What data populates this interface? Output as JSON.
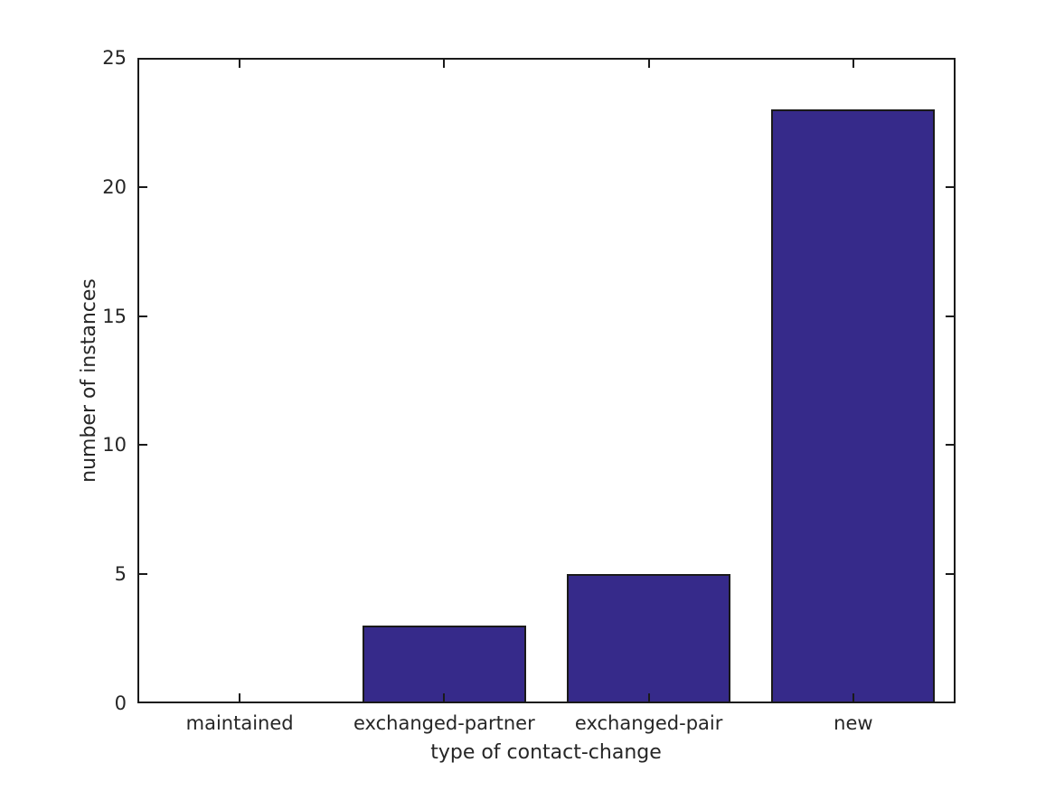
{
  "chart_data": {
    "type": "bar",
    "categories": [
      "maintained",
      "exchanged-partner",
      "exchanged-pair",
      "new"
    ],
    "values": [
      0,
      3,
      5,
      23
    ],
    "title": "",
    "xlabel": "type of contact-change",
    "ylabel": "number of instances",
    "ylim": [
      0,
      25
    ],
    "yticks": [
      0,
      5,
      10,
      15,
      20,
      25
    ],
    "bar_width_fraction": 0.8,
    "bar_color": "#362a8a",
    "bar_edge_color": "#1a1a1a",
    "axis_color": "#1a1a1a",
    "text_color": "#262626",
    "background": "#ffffff",
    "grid": false,
    "legend": "none",
    "tick_direction": "in"
  }
}
